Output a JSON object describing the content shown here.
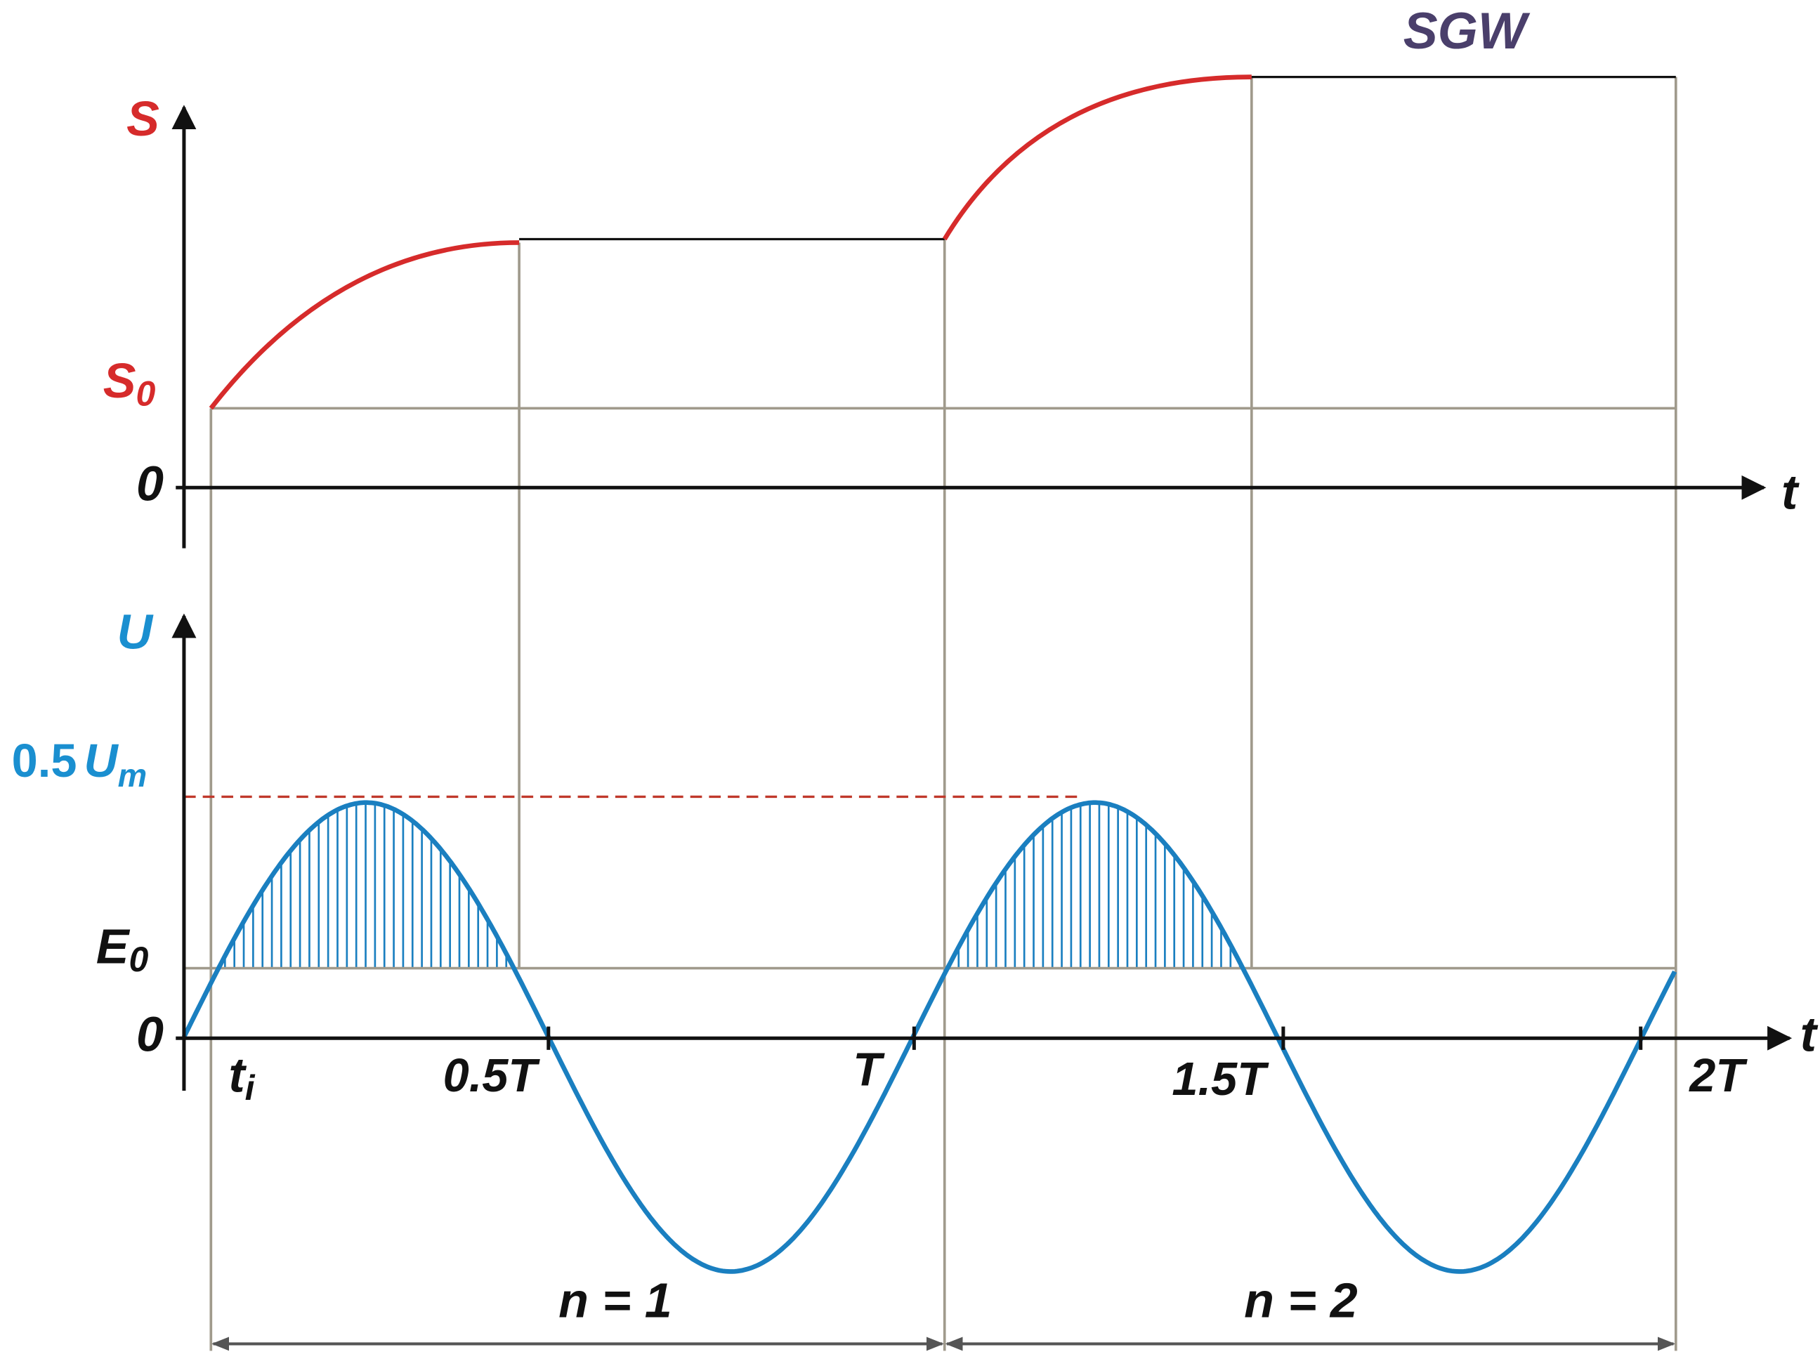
{
  "title": "SGW",
  "top_panel": {
    "y_label": "S",
    "s0_label": {
      "main": "S",
      "sub": "0"
    },
    "zero_label": "0",
    "x_label": "t"
  },
  "bottom_panel": {
    "y_label": "U",
    "peak_label": {
      "main": "0.5",
      "sub_main": "U",
      "sub": "m"
    },
    "e0_label": {
      "main": "E",
      "sub": "0"
    },
    "zero_label": "0",
    "x_label": "t",
    "ti_label": {
      "main": "t",
      "sub": "i"
    },
    "tick_labels": [
      "0.5T",
      "T",
      "1.5T",
      "2T"
    ]
  },
  "spans": [
    "n = 1",
    "n = 2"
  ]
}
